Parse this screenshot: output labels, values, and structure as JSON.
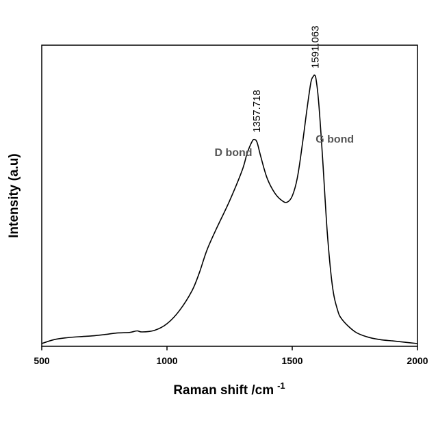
{
  "chart_data": {
    "type": "line",
    "xlabel": "Raman shift /cm",
    "xlabel_superscript": "-1",
    "ylabel": "Intensity (a.u)",
    "xlim": [
      500,
      2000
    ],
    "ylim": [
      0,
      1.05
    ],
    "x_ticks": [
      500,
      1000,
      1500,
      2000
    ],
    "y_ticks_shown": false,
    "grid": false,
    "legend": "none",
    "line_color": "#000000",
    "series": [
      {
        "x": [
          500,
          550,
          600,
          650,
          700,
          750,
          800,
          850,
          880,
          900,
          950,
          1000,
          1050,
          1100,
          1130,
          1160,
          1200,
          1250,
          1300,
          1320,
          1340,
          1350,
          1360,
          1375,
          1400,
          1430,
          1460,
          1480,
          1500,
          1520,
          1540,
          1560,
          1575,
          1585,
          1590,
          1595,
          1605,
          1620,
          1640,
          1660,
          1680,
          1700,
          1750,
          1800,
          1850,
          1900,
          1950,
          2000
        ],
        "y": [
          0.0,
          0.015,
          0.022,
          0.026,
          0.029,
          0.034,
          0.04,
          0.042,
          0.048,
          0.044,
          0.05,
          0.075,
          0.125,
          0.2,
          0.27,
          0.355,
          0.44,
          0.54,
          0.655,
          0.72,
          0.765,
          0.772,
          0.76,
          0.705,
          0.625,
          0.57,
          0.54,
          0.535,
          0.558,
          0.625,
          0.75,
          0.895,
          0.99,
          1.012,
          1.015,
          1.0,
          0.92,
          0.72,
          0.42,
          0.22,
          0.13,
          0.09,
          0.045,
          0.025,
          0.015,
          0.01,
          0.005,
          0.0
        ]
      }
    ],
    "annotations": [
      {
        "text": "1357.718",
        "x": 1357.718,
        "y": 0.772,
        "rotation": "vertical",
        "kind": "peak"
      },
      {
        "text": "1591.063",
        "x": 1591.063,
        "y": 1.015,
        "rotation": "vertical",
        "kind": "peak"
      },
      {
        "text": "D bond",
        "x": 1265,
        "y": 0.71,
        "kind": "band"
      },
      {
        "text": "G bond",
        "x": 1670,
        "y": 0.76,
        "kind": "band"
      }
    ]
  }
}
